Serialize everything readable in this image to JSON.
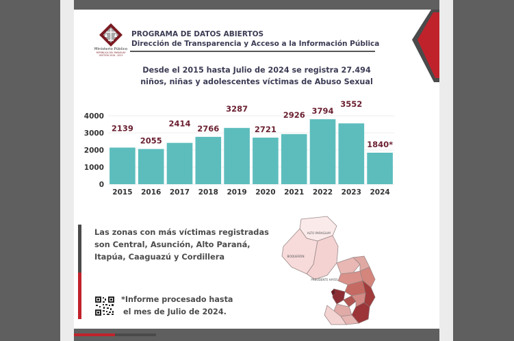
{
  "header": {
    "logo_name": "Ministerio Público",
    "logo_sub_1": "REPÚBLICA DEL PARAGUAY",
    "logo_sub_2": "GESTIÓN 2018 - 2023",
    "program_title": "PROGRAMA DE DATOS ABIERTOS",
    "directorate": "Dirección de Transparencia y Acceso a la Información Pública"
  },
  "headline": {
    "line1": "Desde el 2015 hasta Julio de 2024 se registra 27.494",
    "line2": "niños, niñas y adolescentes víctimas de Abuso Sexual"
  },
  "zones": {
    "line1": "Las zonas con más víctimas registradas",
    "line2": "son Central, Asunción, Alto Paraná,",
    "line3": "Itapúa, Caaguazú y Cordillera"
  },
  "note": {
    "line1": "*Informe procesado hasta",
    "line2": "el mes de Julio de 2024."
  },
  "map_labels": {
    "alto_paraguay": "ALTO PARAGUAY",
    "boqueron": "BOQUERÓN",
    "presidente_hayes": "PRESIDENTE HAYES"
  },
  "colors": {
    "bar": "#5dbdbd",
    "value_label": "#6b2132",
    "accent_red": "#c0222b",
    "dark_text": "#3b3b54"
  },
  "icons": {
    "logo": "scales-of-justice-icon",
    "qr": "qr-code-icon",
    "map": "paraguay-map-icon"
  },
  "chart_data": {
    "type": "bar",
    "categories": [
      "2015",
      "2016",
      "2017",
      "2018",
      "2019",
      "2020",
      "2021",
      "2022",
      "2023",
      "2024"
    ],
    "values": [
      2139,
      2055,
      2414,
      2766,
      3287,
      2721,
      2926,
      3794,
      3552,
      1840
    ],
    "value_labels": [
      "2139",
      "2055",
      "2414",
      "2766",
      "3287",
      "2721",
      "2926",
      "3794",
      "3552",
      "1840*"
    ],
    "title": "",
    "xlabel": "",
    "ylabel": "",
    "ylim": [
      0,
      4000
    ],
    "yticks": [
      0,
      1000,
      2000,
      3000,
      4000
    ],
    "grid": true,
    "legend": "none"
  }
}
